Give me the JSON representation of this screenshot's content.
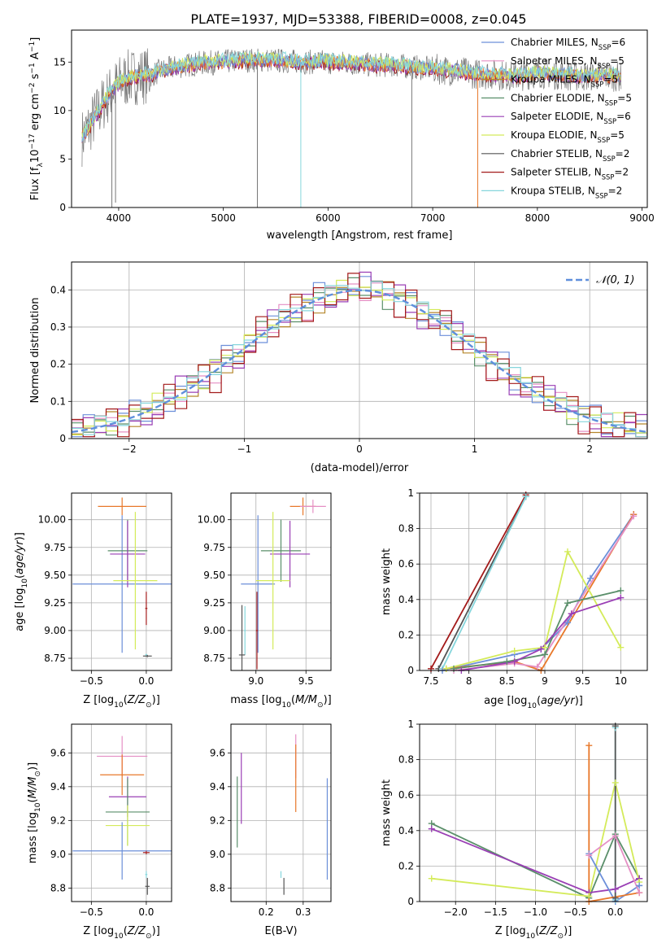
{
  "figure_title": "PLATE=1937, MJD=53388, FIBERID=0008, z=0.045",
  "colors": {
    "chabrier_miles": "#6c8fd9",
    "salpeter_miles": "#e58fc4",
    "kroupa_miles": "#b5862a",
    "chabrier_elodie": "#5a8f6a",
    "salpeter_elodie": "#9a3fb5",
    "kroupa_elodie": "#d4eb5a",
    "chabrier_stelib": "#555555",
    "salpeter_stelib": "#a31a1a",
    "kroupa_stelib": "#86d6dc",
    "extra_orange": "#e8782a",
    "normal_curve": "#5f8fdc",
    "grid": "#b0b0b0"
  },
  "chart_data": [
    {
      "id": "spectrum",
      "type": "line",
      "title": "PLATE=1937, MJD=53388, FIBERID=0008, z=0.045",
      "xlabel": "wavelength [Angstrom, rest frame]",
      "ylabel": "Flux [f_λ10^-17 erg cm^-2 s^-1 A^-1]",
      "xlim": [
        3550,
        9050
      ],
      "ylim": [
        0,
        18.3
      ],
      "xticks": [
        4000,
        5000,
        6000,
        7000,
        8000,
        9000
      ],
      "yticks": [
        0,
        5,
        10,
        15
      ],
      "grid": false,
      "legend_position": "top-right",
      "series": [
        {
          "name": "Chabrier MILES, N_SSP=6",
          "key": "chabrier_miles"
        },
        {
          "name": "Salpeter MILES, N_SSP=5",
          "key": "salpeter_miles"
        },
        {
          "name": "Kroupa MILES, N_SSP=5",
          "key": "kroupa_miles"
        },
        {
          "name": "Chabrier ELODIE, N_SSP=5",
          "key": "chabrier_elodie"
        },
        {
          "name": "Salpeter ELODIE, N_SSP=6",
          "key": "salpeter_elodie"
        },
        {
          "name": "Kroupa ELODIE, N_SSP=5",
          "key": "kroupa_elodie"
        },
        {
          "name": "Chabrier STELIB, N_SSP=2",
          "key": "chabrier_stelib"
        },
        {
          "name": "Salpeter STELIB, N_SSP=2",
          "key": "salpeter_stelib"
        },
        {
          "name": "Kroupa STELIB, N_SSP=2",
          "key": "kroupa_stelib"
        }
      ],
      "continuum": {
        "x": [
          3650,
          3700,
          3800,
          3900,
          4000,
          4100,
          4200,
          4300,
          4400,
          4600,
          4800,
          5000,
          5200,
          5400,
          5600,
          5800,
          6000,
          6200,
          6400,
          6600,
          6800,
          7000,
          7200,
          7400,
          7600,
          7800,
          8000,
          8200,
          8400,
          8600,
          8800
        ],
        "y": [
          7.2,
          8.0,
          9.8,
          11.5,
          12.8,
          13.4,
          13.6,
          13.6,
          14.1,
          14.6,
          14.9,
          15.0,
          15.2,
          15.2,
          15.1,
          15.0,
          15.0,
          14.9,
          14.7,
          14.7,
          14.5,
          14.3,
          14.1,
          13.8,
          13.7,
          13.5,
          13.9,
          13.7,
          13.5,
          13.6,
          13.5
        ]
      }
    },
    {
      "id": "residuals",
      "type": "line",
      "xlabel": "(data-model)/error",
      "ylabel": "Normed distribution",
      "xlim": [
        -2.5,
        2.5
      ],
      "ylim": [
        0,
        0.475
      ],
      "xticks": [
        -2,
        -1,
        0,
        1,
        2
      ],
      "yticks": [
        0.0,
        0.1,
        0.2,
        0.3,
        0.4
      ],
      "grid": true,
      "legend_position": "top-right",
      "legend": "𝒩(0, 1)",
      "bin_width": 0.1,
      "series": [
        {
          "key": "chabrier_miles",
          "offsets": [
            0.01,
            -0.02,
            0.03,
            0.0,
            -0.01,
            0.02,
            0.04,
            -0.03
          ]
        },
        {
          "key": "salpeter_miles",
          "offsets": [
            -0.01,
            0.02,
            -0.02,
            0.03,
            0.01,
            -0.04,
            0.0,
            0.02
          ]
        },
        {
          "key": "kroupa_miles",
          "offsets": [
            0.02,
            0.0,
            0.01,
            -0.02,
            0.03,
            0.01,
            -0.03,
            0.0
          ]
        },
        {
          "key": "chabrier_elodie",
          "offsets": [
            0.0,
            0.03,
            -0.01,
            0.02,
            -0.03,
            0.0,
            0.02,
            0.01
          ]
        },
        {
          "key": "salpeter_elodie",
          "offsets": [
            -0.02,
            0.01,
            0.04,
            -0.01,
            0.0,
            0.03,
            -0.02,
            -0.04
          ]
        },
        {
          "key": "kroupa_elodie",
          "offsets": [
            0.03,
            -0.01,
            0.0,
            0.01,
            -0.02,
            0.02,
            0.01,
            -0.01
          ]
        },
        {
          "key": "salpeter_stelib",
          "offsets": [
            -0.03,
            0.04,
            -0.03,
            0.02,
            0.04,
            -0.05,
            0.03,
            -0.02
          ]
        },
        {
          "key": "kroupa_stelib",
          "offsets": [
            0.01,
            0.0,
            -0.01,
            0.02,
            0.01,
            -0.01,
            0.0,
            0.03
          ]
        }
      ]
    },
    {
      "id": "z_vs_age",
      "type": "scatter",
      "xlabel": "Z [log10(Z/Z⊙)]",
      "ylabel": "age  [log10(age/yr)]",
      "xlim": [
        -0.68,
        0.23
      ],
      "ylim": [
        8.64,
        10.24
      ],
      "xticks": [
        -0.5,
        0.0
      ],
      "xtick_labels": [
        "−0.5",
        "0.0"
      ],
      "yticks": [
        8.75,
        9.0,
        9.25,
        9.5,
        9.75,
        10.0
      ],
      "ytick_labels": [
        "8.75",
        "9.00",
        "9.25",
        "9.50",
        "9.75",
        "10.00"
      ],
      "grid": true,
      "points": [
        {
          "key": "extra_orange",
          "x": -0.22,
          "y": 10.12,
          "xerr": 0.22,
          "yerr": 0.08
        },
        {
          "key": "chabrier_miles",
          "x": -0.22,
          "y": 9.42,
          "xerr": 0.45,
          "yerr": 0.62
        },
        {
          "key": "chabrier_elodie",
          "x": -0.17,
          "y": 9.72,
          "xerr": 0.18,
          "yerr": 0.28
        },
        {
          "key": "salpeter_elodie",
          "x": -0.17,
          "y": 9.69,
          "xerr": 0.16,
          "yerr": 0.3
        },
        {
          "key": "kroupa_elodie",
          "x": -0.1,
          "y": 9.45,
          "xerr": 0.2,
          "yerr": 0.62
        },
        {
          "key": "salpeter_stelib",
          "x": 0.0,
          "y": 9.2,
          "xerr": 0.01,
          "yerr": 0.15
        },
        {
          "key": "kroupa_stelib",
          "x": 0.0,
          "y": 8.78,
          "xerr": 0.01,
          "yerr": 0.01
        },
        {
          "key": "chabrier_stelib",
          "x": 0.01,
          "y": 8.77,
          "xerr": 0.04,
          "yerr": 0.01
        }
      ]
    },
    {
      "id": "mass_vs_age",
      "type": "scatter",
      "xlabel": "mass [log10(M/M⊙)]",
      "xlim": [
        8.75,
        9.75
      ],
      "ylim": [
        8.64,
        10.24
      ],
      "xticks": [
        9.0,
        9.5
      ],
      "xtick_labels": [
        "9.0",
        "9.5"
      ],
      "yticks": [
        8.75,
        9.0,
        9.25,
        9.5,
        9.75,
        10.0
      ],
      "ytick_labels": [
        "8.75",
        "9.00",
        "9.25",
        "9.50",
        "9.75",
        "10.00"
      ],
      "grid": true,
      "points": [
        {
          "key": "extra_orange",
          "x": 9.47,
          "y": 10.12,
          "xerr": 0.13,
          "yerr": 0.08
        },
        {
          "key": "salpeter_miles",
          "x": 9.57,
          "y": 10.12,
          "xerr": 0.13,
          "yerr": 0.06
        },
        {
          "key": "chabrier_miles",
          "x": 9.02,
          "y": 9.42,
          "xerr": 0.17,
          "yerr": 0.62
        },
        {
          "key": "chabrier_elodie",
          "x": 9.25,
          "y": 9.72,
          "xerr": 0.2,
          "yerr": 0.28
        },
        {
          "key": "salpeter_elodie",
          "x": 9.34,
          "y": 9.69,
          "xerr": 0.2,
          "yerr": 0.3
        },
        {
          "key": "kroupa_elodie",
          "x": 9.17,
          "y": 9.45,
          "xerr": 0.17,
          "yerr": 0.62
        },
        {
          "key": "salpeter_stelib",
          "x": 9.01,
          "y": 9.0,
          "xerr": 0.01,
          "yerr": 0.35
        },
        {
          "key": "kroupa_stelib",
          "x": 8.89,
          "y": 9.0,
          "xerr": 0.01,
          "yerr": 0.22
        },
        {
          "key": "chabrier_stelib",
          "x": 8.86,
          "y": 8.78,
          "xerr": 0.03,
          "yerr": 0.45
        }
      ]
    },
    {
      "id": "age_vs_weight",
      "type": "line",
      "xlabel": "age  [log10(age/yr)]",
      "ylabel": "mass weight",
      "xlim": [
        7.35,
        10.35
      ],
      "ylim": [
        0,
        1.0
      ],
      "xticks": [
        7.5,
        8.0,
        8.5,
        9.0,
        9.5,
        10.0
      ],
      "yticks": [
        0.0,
        0.2,
        0.4,
        0.6,
        0.8,
        1.0
      ],
      "grid": true,
      "series": [
        {
          "key": "salpeter_stelib",
          "x": [
            7.5,
            8.75
          ],
          "y": [
            0.01,
            0.99
          ]
        },
        {
          "key": "chabrier_stelib",
          "x": [
            7.6,
            8.75
          ],
          "y": [
            0.01,
            0.98
          ]
        },
        {
          "key": "kroupa_stelib",
          "x": [
            7.65,
            8.75
          ],
          "y": [
            0.01,
            0.98
          ]
        },
        {
          "key": "chabrier_miles",
          "x": [
            7.65,
            8.6,
            8.95,
            9.3,
            9.6,
            10.17
          ],
          "y": [
            0.0,
            0.09,
            0.12,
            0.27,
            0.52,
            0.88
          ]
        },
        {
          "key": "extra_orange",
          "x": [
            7.7,
            8.6,
            8.95,
            10.17
          ],
          "y": [
            0.01,
            0.05,
            0.0,
            0.88
          ]
        },
        {
          "key": "salpeter_miles",
          "x": [
            7.8,
            8.6,
            8.9,
            10.17
          ],
          "y": [
            0.0,
            0.04,
            0.02,
            0.87
          ]
        },
        {
          "key": "kroupa_elodie",
          "x": [
            7.7,
            8.6,
            9.0,
            9.3,
            10.0
          ],
          "y": [
            0.01,
            0.11,
            0.13,
            0.67,
            0.13
          ]
        },
        {
          "key": "chabrier_elodie",
          "x": [
            7.8,
            8.5,
            9.0,
            9.3,
            10.0
          ],
          "y": [
            0.01,
            0.05,
            0.09,
            0.38,
            0.45
          ]
        },
        {
          "key": "salpeter_elodie",
          "x": [
            7.9,
            8.6,
            8.95,
            9.35,
            10.0
          ],
          "y": [
            0.0,
            0.05,
            0.12,
            0.32,
            0.41
          ]
        }
      ]
    },
    {
      "id": "z_vs_mass",
      "type": "scatter",
      "xlabel": "Z [log10(Z/Z⊙)]",
      "ylabel": "mass [log10(M/M⊙)]",
      "xlim": [
        -0.68,
        0.23
      ],
      "ylim": [
        8.72,
        9.77
      ],
      "xticks": [
        -0.5,
        0.0
      ],
      "xtick_labels": [
        "−0.5",
        "0.0"
      ],
      "yticks": [
        8.8,
        9.0,
        9.2,
        9.4,
        9.6
      ],
      "ytick_labels": [
        "8.8",
        "9.0",
        "9.2",
        "9.4",
        "9.6"
      ],
      "grid": true,
      "points": [
        {
          "key": "salpeter_miles",
          "x": -0.22,
          "y": 9.58,
          "xerr": 0.23,
          "yerr": 0.12
        },
        {
          "key": "extra_orange",
          "x": -0.22,
          "y": 9.47,
          "xerr": 0.2,
          "yerr": 0.12
        },
        {
          "key": "salpeter_elodie",
          "x": -0.17,
          "y": 9.34,
          "xerr": 0.17,
          "yerr": 0.12
        },
        {
          "key": "chabrier_elodie",
          "x": -0.17,
          "y": 9.25,
          "xerr": 0.2,
          "yerr": 0.2
        },
        {
          "key": "kroupa_elodie",
          "x": -0.17,
          "y": 9.17,
          "xerr": 0.2,
          "yerr": 0.12
        },
        {
          "key": "chabrier_miles",
          "x": -0.22,
          "y": 9.02,
          "xerr": 0.45,
          "yerr": 0.17
        },
        {
          "key": "salpeter_stelib",
          "x": 0.0,
          "y": 9.01,
          "xerr": 0.03,
          "yerr": 0.01
        },
        {
          "key": "kroupa_stelib",
          "x": 0.0,
          "y": 8.88,
          "xerr": 0.01,
          "yerr": 0.02
        },
        {
          "key": "chabrier_stelib",
          "x": 0.01,
          "y": 8.81,
          "xerr": 0.02,
          "yerr": 0.05
        }
      ]
    },
    {
      "id": "ebv_vs_mass",
      "type": "scatter",
      "xlabel": "E(B-V)",
      "xlim": [
        0.105,
        0.375
      ],
      "ylim": [
        8.72,
        9.77
      ],
      "xticks": [
        0.2,
        0.3
      ],
      "xtick_labels": [
        "0.2",
        "0.3"
      ],
      "yticks": [
        8.8,
        9.0,
        9.2,
        9.4,
        9.6
      ],
      "ytick_labels": [
        "8.8",
        "9.0",
        "9.2",
        "9.4",
        "9.6"
      ],
      "grid": true,
      "points": [
        {
          "key": "chabrier_elodie",
          "x": 0.122,
          "y": 9.25,
          "xerr": 0,
          "yerr": 0.21
        },
        {
          "key": "salpeter_elodie",
          "x": 0.133,
          "y": 9.39,
          "xerr": 0,
          "yerr": 0.21
        },
        {
          "key": "kroupa_stelib",
          "x": 0.24,
          "y": 8.88,
          "xerr": 0,
          "yerr": 0.02
        },
        {
          "key": "chabrier_stelib",
          "x": 0.248,
          "y": 8.81,
          "xerr": 0,
          "yerr": 0.05
        },
        {
          "key": "salpeter_miles",
          "x": 0.28,
          "y": 9.58,
          "xerr": 0,
          "yerr": 0.13
        },
        {
          "key": "extra_orange",
          "x": 0.28,
          "y": 9.45,
          "xerr": 0,
          "yerr": 0.2
        },
        {
          "key": "chabrier_miles",
          "x": 0.365,
          "y": 9.15,
          "xerr": 0,
          "yerr": 0.3
        }
      ]
    },
    {
      "id": "z_vs_weight",
      "type": "line",
      "xlabel": "Z [log10(Z/Z⊙)]",
      "ylabel": "mass weight",
      "xlim": [
        -2.45,
        0.4
      ],
      "ylim": [
        0,
        1.0
      ],
      "xticks": [
        -2.0,
        -1.5,
        -1.0,
        -0.5,
        0.0
      ],
      "xtick_labels": [
        "−2.0",
        "−1.5",
        "−1.0",
        "−0.5",
        "0.0"
      ],
      "yticks": [
        0.0,
        0.2,
        0.4,
        0.6,
        0.8,
        1.0
      ],
      "grid": true,
      "series": [
        {
          "key": "chabrier_elodie",
          "x": [
            -2.3,
            -0.33,
            0.0,
            0.3
          ],
          "y": [
            0.44,
            0.02,
            0.38,
            0.13
          ]
        },
        {
          "key": "salpeter_elodie",
          "x": [
            -2.3,
            -0.33,
            0.0,
            0.3
          ],
          "y": [
            0.41,
            0.05,
            0.07,
            0.13
          ]
        },
        {
          "key": "kroupa_elodie",
          "x": [
            -2.3,
            -0.33,
            0.0,
            0.3
          ],
          "y": [
            0.13,
            0.03,
            0.67,
            0.11
          ]
        },
        {
          "key": "chabrier_miles",
          "x": [
            -0.33,
            0.0,
            0.3
          ],
          "y": [
            0.27,
            0.0,
            0.09
          ]
        },
        {
          "key": "extra_orange",
          "x": [
            -0.33,
            -0.33,
            0.3
          ],
          "y": [
            0.88,
            0.0,
            0.05
          ]
        },
        {
          "key": "salpeter_miles",
          "x": [
            -0.33,
            0.0,
            0.3
          ],
          "y": [
            0.26,
            0.37,
            0.05
          ]
        },
        {
          "key": "kroupa_stelib",
          "x": [
            0.0,
            0.0
          ],
          "y": [
            0.98,
            0.01
          ]
        },
        {
          "key": "chabrier_stelib",
          "x": [
            0.0,
            0.0
          ],
          "y": [
            0.99,
            0.02
          ]
        }
      ]
    }
  ]
}
